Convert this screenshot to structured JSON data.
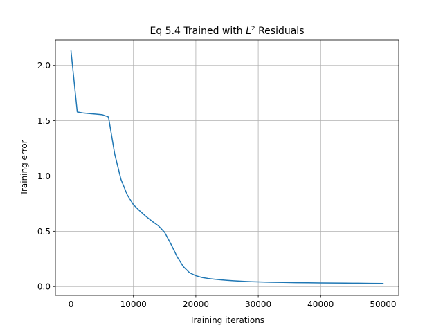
{
  "chart_data": {
    "type": "line",
    "title": "Eq 5.4 Trained with L² Residuals",
    "title_parts": {
      "before": "Eq 5.4 Trained with ",
      "math_base": "L",
      "math_sup": "2",
      "after": " Residuals"
    },
    "xlabel": "Training iterations",
    "ylabel": "Training error",
    "xlim": [
      -2500,
      52500
    ],
    "ylim": [
      -0.08,
      2.23
    ],
    "xticks": [
      0,
      10000,
      20000,
      30000,
      40000,
      50000
    ],
    "xtick_labels": [
      "0",
      "10000",
      "20000",
      "30000",
      "40000",
      "50000"
    ],
    "yticks": [
      0.0,
      0.5,
      1.0,
      1.5,
      2.0
    ],
    "ytick_labels": [
      "0.0",
      "0.5",
      "1.0",
      "1.5",
      "2.0"
    ],
    "grid": true,
    "series_color": "#1f77b4",
    "series": [
      {
        "x": [
          0,
          1000,
          2000,
          3000,
          4000,
          5000,
          6000,
          7000,
          8000,
          9000,
          10000,
          11000,
          12000,
          13000,
          14000,
          15000,
          16000,
          17000,
          18000,
          19000,
          20000,
          21000,
          22000,
          23000,
          24000,
          25000,
          26000,
          27000,
          28000,
          29000,
          30000,
          32000,
          34000,
          36000,
          38000,
          40000,
          42000,
          44000,
          46000,
          48000,
          50000
        ],
        "y": [
          2.13,
          1.58,
          1.57,
          1.565,
          1.56,
          1.555,
          1.535,
          1.2,
          0.97,
          0.83,
          0.74,
          0.685,
          0.635,
          0.59,
          0.55,
          0.49,
          0.385,
          0.27,
          0.18,
          0.125,
          0.098,
          0.082,
          0.073,
          0.066,
          0.061,
          0.056,
          0.052,
          0.049,
          0.046,
          0.044,
          0.042,
          0.039,
          0.037,
          0.035,
          0.034,
          0.033,
          0.032,
          0.031,
          0.03,
          0.029,
          0.028
        ]
      }
    ]
  }
}
